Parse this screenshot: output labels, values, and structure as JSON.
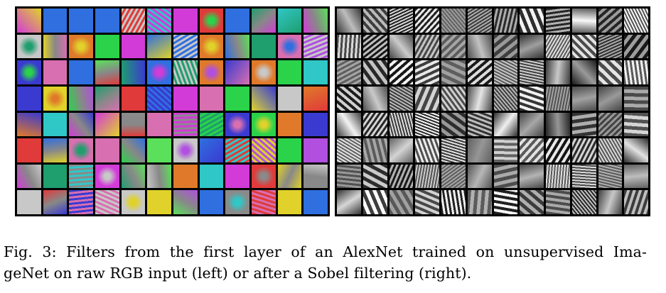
{
  "figure": {
    "panels": [
      {
        "id": "left",
        "label": "raw RGB input (left)",
        "rows": 8,
        "cols": 12,
        "palette": "color"
      },
      {
        "id": "right",
        "label": "after a Sobel filtering (right)",
        "rows": 8,
        "cols": 12,
        "palette": "grayscale"
      }
    ],
    "caption": {
      "line1": "Fig. 3: Filters from the first layer of an AlexNet trained on unsupervised Ima-",
      "line2": "geNet on raw RGB input (left) or after a Sobel filtering (right)."
    }
  }
}
